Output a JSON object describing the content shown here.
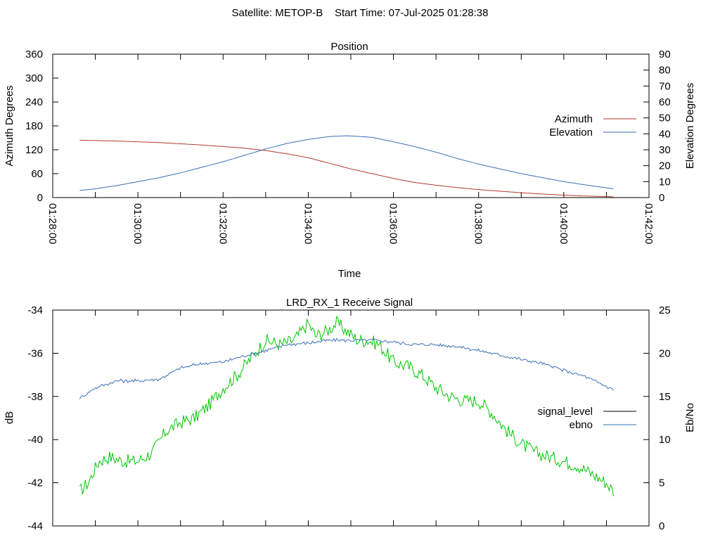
{
  "header": {
    "title": "Satellite: METOP-B    Start Time: 07-Jul-2025 01:28:38"
  },
  "colors": {
    "azimuth": "#b03a2e",
    "elevation": "#3a6fb5",
    "signal_level": "#00c800",
    "signal_level_legend": "#000000",
    "ebno": "#3a6fb5"
  },
  "chart_data": [
    {
      "type": "line",
      "title": "Position",
      "xlabel": "Time",
      "ylabel": "Azimuth Degrees",
      "y2label": "Elevation Degrees",
      "x_ticks": [
        "01:28:00",
        "01:30:00",
        "01:32:00",
        "01:34:00",
        "01:36:00",
        "01:38:00",
        "01:40:00",
        "01:42:00"
      ],
      "xlim": [
        "01:28:00",
        "01:42:00"
      ],
      "ylim": [
        0,
        360
      ],
      "y_ticks": [
        "0",
        "60",
        "120",
        "180",
        "240",
        "300",
        "360"
      ],
      "y2lim": [
        0,
        90
      ],
      "y2_ticks": [
        "0",
        "10",
        "20",
        "30",
        "40",
        "50",
        "60",
        "70",
        "80",
        "90"
      ],
      "legend_position": "right",
      "grid": false,
      "series": [
        {
          "name": "Azimuth",
          "axis": "left",
          "x": [
            "01:28:38",
            "01:29:30",
            "01:30:30",
            "01:31:30",
            "01:32:30",
            "01:33:00",
            "01:33:30",
            "01:34:00",
            "01:34:30",
            "01:35:00",
            "01:35:30",
            "01:36:00",
            "01:36:30",
            "01:37:00",
            "01:37:30",
            "01:38:00",
            "01:38:30",
            "01:39:00",
            "01:39:30",
            "01:40:00",
            "01:40:30",
            "01:41:10"
          ],
          "values": [
            144,
            142,
            138,
            132,
            124,
            118,
            110,
            100,
            86,
            72,
            60,
            48,
            38,
            31,
            25,
            20,
            16,
            12,
            9,
            6,
            4,
            2
          ]
        },
        {
          "name": "Elevation",
          "axis": "right",
          "x": [
            "01:28:38",
            "01:29:00",
            "01:29:30",
            "01:30:00",
            "01:30:30",
            "01:31:00",
            "01:31:30",
            "01:32:00",
            "01:32:30",
            "01:33:00",
            "01:33:30",
            "01:34:00",
            "01:34:30",
            "01:34:55",
            "01:35:30",
            "01:36:00",
            "01:36:30",
            "01:37:00",
            "01:37:30",
            "01:38:00",
            "01:38:30",
            "01:39:00",
            "01:39:30",
            "01:40:00",
            "01:40:30",
            "01:41:10"
          ],
          "values": [
            4.5,
            5.5,
            7.5,
            10,
            12.5,
            15.5,
            19,
            22.5,
            26.5,
            30.5,
            34,
            36.5,
            38.3,
            38.8,
            37.8,
            35,
            32,
            28.5,
            24.5,
            21,
            18,
            15,
            12.5,
            10,
            8,
            5.5
          ]
        }
      ]
    },
    {
      "type": "line",
      "title": "LRD_RX_1 Receive Signal",
      "ylabel": "dB",
      "y2label": "Eb/No",
      "xlim": [
        "01:28:00",
        "01:42:00"
      ],
      "ylim": [
        -44,
        -34
      ],
      "y_ticks": [
        "-44",
        "-42",
        "-40",
        "-38",
        "-36",
        "-34"
      ],
      "y2lim": [
        0,
        25
      ],
      "y2_ticks": [
        "0",
        "5",
        "10",
        "15",
        "20",
        "25"
      ],
      "legend_position": "right",
      "grid": false,
      "series": [
        {
          "name": "signal_level",
          "axis": "right",
          "x": [
            "01:28:38",
            "01:28:50",
            "01:29:05",
            "01:29:20",
            "01:29:40",
            "01:30:00",
            "01:30:20",
            "01:30:40",
            "01:31:00",
            "01:31:20",
            "01:31:40",
            "01:32:00",
            "01:32:20",
            "01:32:40",
            "01:33:00",
            "01:33:20",
            "01:33:40",
            "01:34:00",
            "01:34:10",
            "01:34:25",
            "01:34:40",
            "01:34:55",
            "01:35:10",
            "01:35:25",
            "01:35:40",
            "01:36:00",
            "01:36:20",
            "01:36:40",
            "01:37:00",
            "01:37:20",
            "01:37:40",
            "01:38:00",
            "01:38:20",
            "01:38:40",
            "01:39:00",
            "01:39:20",
            "01:39:40",
            "01:40:00",
            "01:40:20",
            "01:40:40",
            "01:41:00",
            "01:41:10"
          ],
          "values": [
            4,
            5,
            7.5,
            8,
            7.5,
            7.5,
            8.5,
            11,
            12,
            12.5,
            14,
            16,
            17.5,
            19.5,
            21.5,
            21,
            21.5,
            23.5,
            22,
            22.5,
            23.5,
            22.5,
            21.5,
            21.5,
            21,
            19,
            18.5,
            17.5,
            16,
            15,
            14.5,
            14.5,
            13,
            11,
            9.5,
            8.5,
            8,
            7.5,
            7,
            6,
            5,
            4
          ]
        },
        {
          "name": "ebno",
          "axis": "right",
          "x": [
            "01:28:38",
            "01:29:00",
            "01:29:30",
            "01:30:00",
            "01:30:30",
            "01:31:00",
            "01:31:30",
            "01:32:00",
            "01:32:30",
            "01:33:00",
            "01:33:30",
            "01:34:00",
            "01:34:30",
            "01:35:00",
            "01:35:30",
            "01:36:00",
            "01:36:30",
            "01:37:00",
            "01:37:30",
            "01:38:00",
            "01:38:30",
            "01:39:00",
            "01:39:30",
            "01:40:00",
            "01:40:30",
            "01:41:10"
          ],
          "values": [
            14.8,
            16,
            16.8,
            16.8,
            17,
            18.3,
            18.8,
            19,
            19.7,
            20.3,
            21,
            21.2,
            21.5,
            21.5,
            21.5,
            21.3,
            21,
            21,
            20.8,
            20.3,
            19.8,
            19.3,
            18.8,
            18,
            17.3,
            15.8
          ]
        }
      ]
    }
  ]
}
